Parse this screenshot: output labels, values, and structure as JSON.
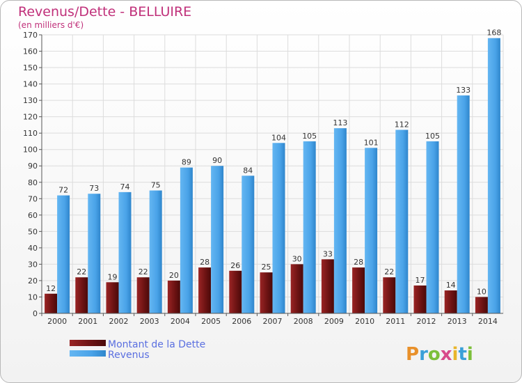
{
  "chart_data": {
    "type": "bar",
    "title": "Revenus/Dette - BELLUIRE",
    "subtitle": "(en milliers d'€)",
    "categories": [
      "2000",
      "2001",
      "2002",
      "2003",
      "2004",
      "2005",
      "2006",
      "2007",
      "2008",
      "2009",
      "2010",
      "2011",
      "2012",
      "2013",
      "2014"
    ],
    "series": [
      {
        "name": "Montant de la Dette",
        "color": "#7a1a1a",
        "values": [
          12,
          22,
          19,
          22,
          20,
          28,
          26,
          25,
          30,
          33,
          28,
          22,
          17,
          14,
          10
        ]
      },
      {
        "name": "Revenus",
        "color": "#4aa3e8",
        "values": [
          72,
          73,
          74,
          75,
          89,
          90,
          84,
          104,
          105,
          113,
          101,
          112,
          105,
          133,
          168
        ]
      }
    ],
    "ylim": [
      0,
      170
    ],
    "yticks": [
      0,
      10,
      20,
      30,
      40,
      50,
      60,
      70,
      80,
      90,
      100,
      110,
      120,
      130,
      140,
      150,
      160,
      170
    ],
    "grid": true,
    "legend_position": "bottom-left"
  },
  "brand": {
    "letters": [
      "P",
      "r",
      "o",
      "x",
      "i",
      "t",
      "i"
    ],
    "colors": [
      "#e8902a",
      "#3aa0d8",
      "#7cbf3a",
      "#d84a8a",
      "#e8b52a",
      "#3aa0d8",
      "#7cbf3a"
    ]
  }
}
